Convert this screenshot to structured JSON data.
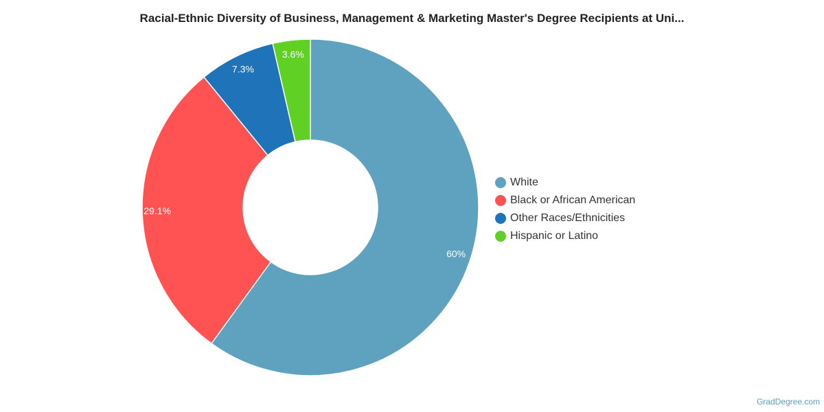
{
  "title": "Racial-Ethnic Diversity of Business, Management & Marketing Master's Degree Recipients at Uni...",
  "chart_data": {
    "type": "pie",
    "donut": true,
    "slices": [
      {
        "name": "White",
        "value": 60,
        "label": "60%",
        "color": "#5ea2bf"
      },
      {
        "name": "Black or African American",
        "value": 29.1,
        "label": "29.1%",
        "color": "#ff5252"
      },
      {
        "name": "Other Races/Ethnicities",
        "value": 7.3,
        "label": "7.3%",
        "color": "#1f73b8"
      },
      {
        "name": "Hispanic or Latino",
        "value": 3.6,
        "label": "3.6%",
        "color": "#61d025"
      }
    ],
    "legend_position": "right"
  },
  "credit": "GradDegree.com"
}
